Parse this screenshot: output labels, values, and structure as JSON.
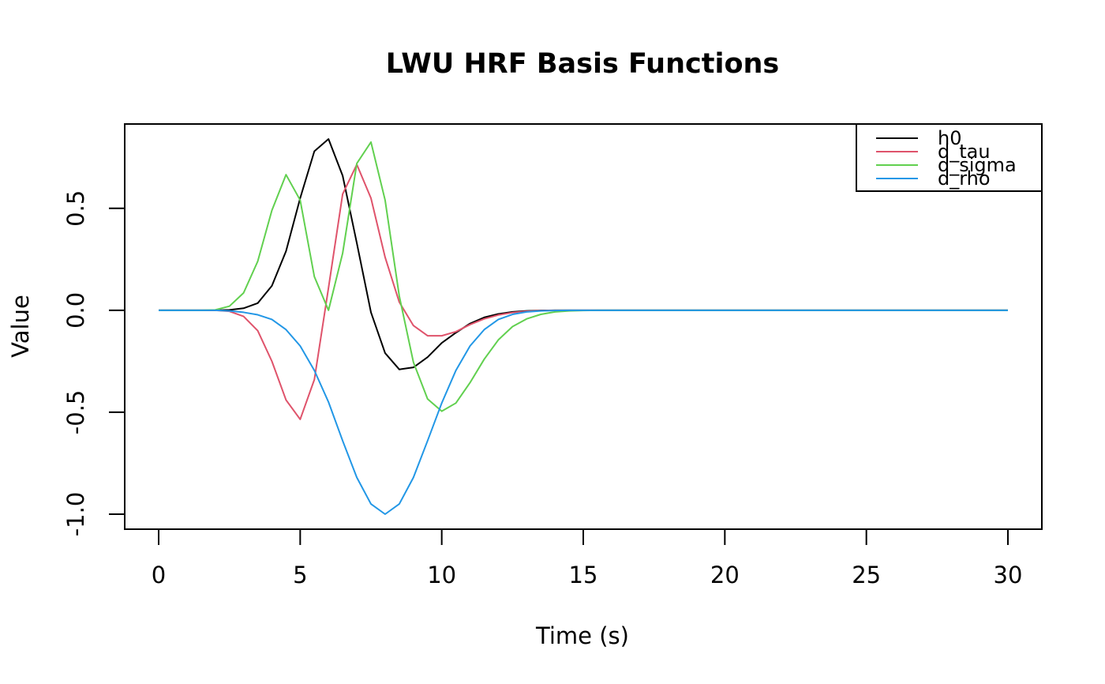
{
  "chart_data": {
    "type": "line",
    "title": "LWU HRF Basis Functions",
    "xlabel": "Time (s)",
    "ylabel": "Value",
    "xlim": [
      0,
      30
    ],
    "ylim": [
      -1.0,
      0.84
    ],
    "xticks": [
      0,
      5,
      10,
      15,
      20,
      25,
      30
    ],
    "yticks": [
      -1.0,
      -0.5,
      0.0,
      0.5
    ],
    "ytick_labels": [
      "-1.0",
      "-0.5",
      "0.0",
      "0.5"
    ],
    "grid": false,
    "legend_position": "top-right",
    "x": [
      0,
      0.5,
      1,
      1.5,
      2,
      2.5,
      3,
      3.5,
      4,
      4.5,
      5,
      5.5,
      6,
      6.5,
      7,
      7.5,
      8,
      8.5,
      9,
      9.5,
      10,
      10.5,
      11,
      11.5,
      12,
      12.5,
      13,
      13.5,
      14,
      14.5,
      15,
      15.5,
      16,
      16.5,
      17,
      17.5,
      18,
      18.5,
      19,
      19.5,
      20,
      20.5,
      21,
      21.5,
      22,
      22.5,
      23,
      23.5,
      24,
      24.5,
      25,
      25.5,
      26,
      26.5,
      27,
      27.5,
      28,
      28.5,
      29,
      29.5,
      30
    ],
    "series": [
      {
        "name": "h0",
        "color": "#000000",
        "values": [
          0,
          0,
          0,
          0,
          0,
          0.002,
          0.01,
          0.035,
          0.12,
          0.29,
          0.55,
          0.78,
          0.84,
          0.66,
          0.33,
          -0.01,
          -0.21,
          -0.29,
          -0.28,
          -0.23,
          -0.16,
          -0.11,
          -0.065,
          -0.035,
          -0.018,
          -0.008,
          -0.003,
          -0.001,
          0,
          0,
          0,
          0,
          0,
          0,
          0,
          0,
          0,
          0,
          0,
          0,
          0,
          0,
          0,
          0,
          0,
          0,
          0,
          0,
          0,
          0,
          0,
          0,
          0,
          0,
          0,
          0,
          0,
          0,
          0,
          0,
          0
        ]
      },
      {
        "name": "d_tau",
        "color": "#DF536B",
        "values": [
          0,
          0,
          0,
          0,
          0,
          -0.005,
          -0.03,
          -0.1,
          -0.25,
          -0.44,
          -0.535,
          -0.34,
          0.11,
          0.57,
          0.715,
          0.55,
          0.26,
          0.04,
          -0.075,
          -0.125,
          -0.125,
          -0.105,
          -0.07,
          -0.042,
          -0.023,
          -0.011,
          -0.005,
          -0.002,
          0,
          0,
          0,
          0,
          0,
          0,
          0,
          0,
          0,
          0,
          0,
          0,
          0,
          0,
          0,
          0,
          0,
          0,
          0,
          0,
          0,
          0,
          0,
          0,
          0,
          0,
          0,
          0,
          0,
          0,
          0,
          0,
          0
        ]
      },
      {
        "name": "d_sigma",
        "color": "#61D04F",
        "values": [
          0,
          0,
          0,
          0,
          0.002,
          0.02,
          0.085,
          0.24,
          0.49,
          0.665,
          0.54,
          0.165,
          0,
          0.28,
          0.72,
          0.825,
          0.54,
          0.07,
          -0.255,
          -0.435,
          -0.495,
          -0.455,
          -0.355,
          -0.24,
          -0.145,
          -0.08,
          -0.042,
          -0.02,
          -0.008,
          -0.003,
          -0.001,
          0,
          0,
          0,
          0,
          0,
          0,
          0,
          0,
          0,
          0,
          0,
          0,
          0,
          0,
          0,
          0,
          0,
          0,
          0,
          0,
          0,
          0,
          0,
          0,
          0,
          0,
          0,
          0,
          0,
          0
        ]
      },
      {
        "name": "d_rho",
        "color": "#2297E6",
        "values": [
          0,
          0,
          0,
          0,
          0,
          -0.003,
          -0.01,
          -0.022,
          -0.045,
          -0.095,
          -0.175,
          -0.295,
          -0.45,
          -0.64,
          -0.82,
          -0.95,
          -1.0,
          -0.95,
          -0.82,
          -0.64,
          -0.455,
          -0.295,
          -0.175,
          -0.095,
          -0.045,
          -0.02,
          -0.008,
          -0.003,
          -0.001,
          0,
          0,
          0,
          0,
          0,
          0,
          0,
          0,
          0,
          0,
          0,
          0,
          0,
          0,
          0,
          0,
          0,
          0,
          0,
          0,
          0,
          0,
          0,
          0,
          0,
          0,
          0,
          0,
          0,
          0,
          0,
          0
        ]
      }
    ]
  }
}
